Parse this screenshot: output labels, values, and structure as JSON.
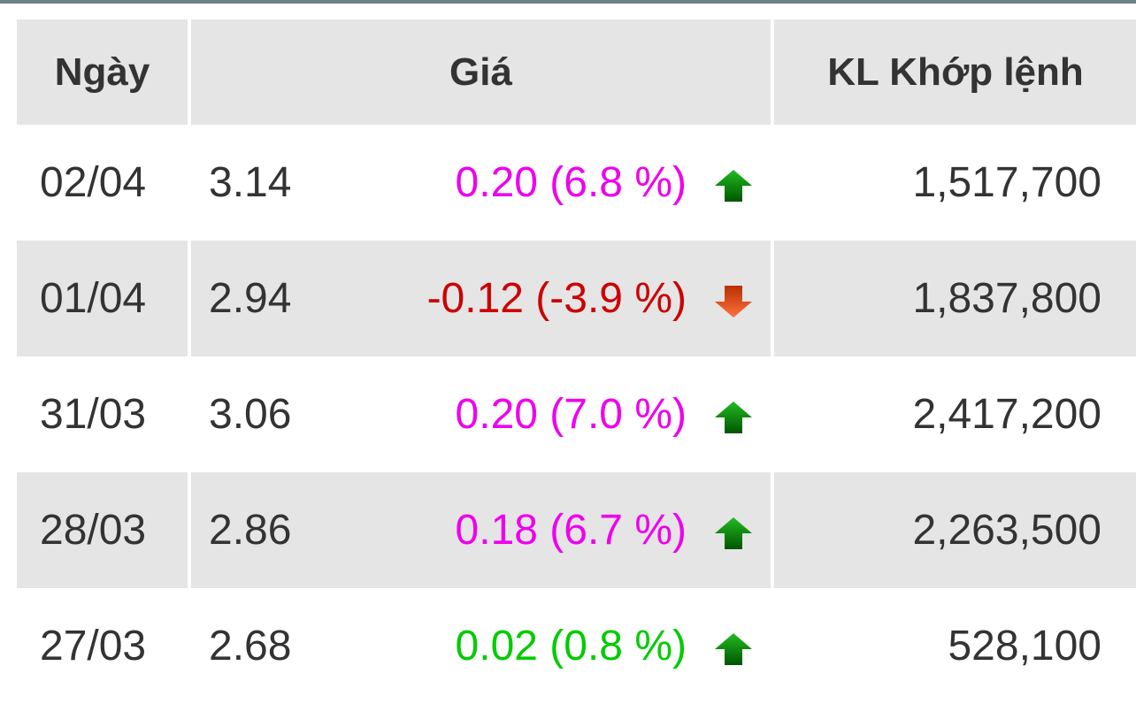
{
  "colors": {
    "up": "#ee00ee",
    "down": "#cc0000",
    "ref_up": "#00cc00",
    "arrow_up": "#119911",
    "arrow_down": "#e04a10"
  },
  "headers": {
    "date": "Ngày",
    "price": "Giá",
    "volume": "KL Khớp lệnh"
  },
  "rows": [
    {
      "date": "02/04",
      "price": "3.14",
      "change": "0.20 (6.8 %)",
      "trend": "up",
      "color": "#ee00ee",
      "icon": "arrow-up-icon",
      "volume": "1,517,700"
    },
    {
      "date": "01/04",
      "price": "2.94",
      "change": "-0.12 (-3.9 %)",
      "trend": "down",
      "color": "#cc0000",
      "icon": "arrow-down-icon",
      "volume": "1,837,800"
    },
    {
      "date": "31/03",
      "price": "3.06",
      "change": "0.20 (7.0 %)",
      "trend": "up",
      "color": "#ee00ee",
      "icon": "arrow-up-icon",
      "volume": "2,417,200"
    },
    {
      "date": "28/03",
      "price": "2.86",
      "change": "0.18 (6.7 %)",
      "trend": "up",
      "color": "#ee00ee",
      "icon": "arrow-up-icon",
      "volume": "2,263,500"
    },
    {
      "date": "27/03",
      "price": "2.68",
      "change": "0.02 (0.8 %)",
      "trend": "up",
      "color": "#00cc00",
      "icon": "arrow-up-icon",
      "volume": "528,100"
    }
  ]
}
